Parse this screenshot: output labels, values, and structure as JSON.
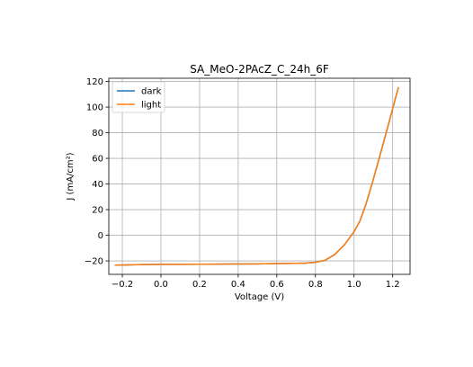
{
  "chart_data": {
    "type": "line",
    "title": "SA_MeO-2PAcZ_C_24h_6F",
    "xlabel": "Voltage (V)",
    "ylabel": "J (mA/cm²)",
    "xlim": [
      -0.27,
      1.29
    ],
    "ylim": [
      -30.5,
      122.5
    ],
    "xticks": [
      -0.2,
      0.0,
      0.2,
      0.4,
      0.6,
      0.8,
      1.0,
      1.2
    ],
    "xtick_labels": [
      "−0.2",
      "0.0",
      "0.2",
      "0.4",
      "0.6",
      "0.8",
      "1.0",
      "1.2"
    ],
    "yticks": [
      -20,
      0,
      20,
      40,
      60,
      80,
      100,
      120
    ],
    "ytick_labels": [
      "−20",
      "0",
      "20",
      "40",
      "60",
      "80",
      "100",
      "120"
    ],
    "grid": true,
    "legend_position": "top-left",
    "series": [
      {
        "name": "dark",
        "color": "#1f77b4",
        "x": [
          -0.24,
          -0.2,
          -0.1,
          0.0,
          0.1,
          0.2,
          0.3,
          0.4,
          0.5,
          0.6,
          0.7,
          0.75,
          0.8,
          0.85,
          0.9,
          0.95,
          1.0,
          1.03,
          1.06,
          1.09,
          1.12,
          1.15,
          1.18,
          1.21,
          1.23
        ],
        "y": [
          -23.3,
          -23.2,
          -22.9,
          -22.7,
          -22.7,
          -22.6,
          -22.5,
          -22.4,
          -22.3,
          -22.1,
          -21.9,
          -21.7,
          -21.1,
          -19.5,
          -15.0,
          -7.5,
          2.8,
          11.0,
          23.5,
          38.5,
          54.5,
          71.0,
          87.5,
          104.5,
          115.5
        ]
      },
      {
        "name": "light",
        "color": "#ff7f0e",
        "x": [
          -0.24,
          -0.2,
          -0.1,
          0.0,
          0.1,
          0.2,
          0.3,
          0.4,
          0.5,
          0.6,
          0.7,
          0.75,
          0.8,
          0.85,
          0.9,
          0.95,
          1.0,
          1.03,
          1.06,
          1.09,
          1.12,
          1.15,
          1.18,
          1.21,
          1.23
        ],
        "y": [
          -23.3,
          -23.2,
          -22.9,
          -22.7,
          -22.7,
          -22.6,
          -22.5,
          -22.4,
          -22.3,
          -22.1,
          -21.9,
          -21.7,
          -21.1,
          -19.5,
          -15.0,
          -7.5,
          2.8,
          11.0,
          23.5,
          38.5,
          54.5,
          71.0,
          87.5,
          104.5,
          115.5
        ]
      }
    ]
  }
}
